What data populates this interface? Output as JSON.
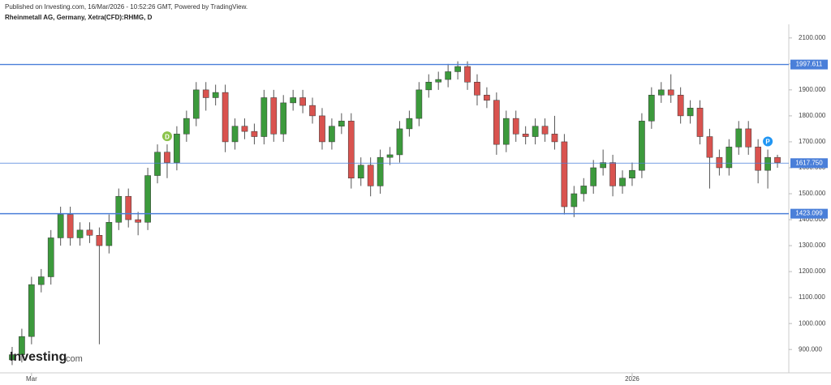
{
  "chart_data": {
    "type": "candlestick",
    "published": "Published on Investing.com, 16/Mar/2026 - 10:52:26 GMT, Powered by TradingView.",
    "title": "Rheinmetall AG, Germany, Xetra(CFD):RHMG, D",
    "logo": "Investing",
    "logo_suffix": ".com",
    "categories": [
      null,
      null,
      "Mar",
      null,
      null,
      null,
      null,
      null,
      null,
      null,
      null,
      null,
      null,
      null,
      null,
      null,
      null,
      null,
      null,
      null,
      null,
      null,
      null,
      null,
      null,
      null,
      null,
      null,
      null,
      null,
      null,
      null,
      null,
      null,
      null,
      null,
      null,
      null,
      null,
      null,
      null,
      null,
      null,
      null,
      null,
      null,
      null,
      null,
      null,
      null,
      null,
      null,
      null,
      null,
      null,
      null,
      null,
      null,
      null,
      null,
      null,
      null,
      null,
      null,
      "2026",
      null,
      null,
      null,
      null,
      null,
      null,
      null,
      null,
      null,
      null,
      null,
      null,
      null,
      null,
      null
    ],
    "open": [
      860,
      880,
      950,
      1150,
      1180,
      1330,
      1420,
      1330,
      1360,
      1340,
      1300,
      1390,
      1490,
      1400,
      1390,
      1570,
      1660,
      1620,
      1730,
      1790,
      1900,
      1870,
      1890,
      1700,
      1760,
      1740,
      1720,
      1870,
      1730,
      1850,
      1870,
      1840,
      1800,
      1700,
      1760,
      1780,
      1560,
      1610,
      1530,
      1640,
      1650,
      1750,
      1790,
      1900,
      1930,
      1940,
      1970,
      1990,
      1930,
      1880,
      1860,
      1690,
      1790,
      1730,
      1720,
      1760,
      1730,
      1700,
      1450,
      1500,
      1530,
      1600,
      1620,
      1530,
      1560,
      1590,
      1780,
      1880,
      1900,
      1880,
      1800,
      1830,
      1720,
      1640,
      1600,
      1680,
      1750,
      1680,
      1590,
      1640
    ],
    "high": [
      910,
      980,
      1180,
      1210,
      1360,
      1450,
      1450,
      1390,
      1390,
      1370,
      1420,
      1520,
      1520,
      1430,
      1600,
      1690,
      1690,
      1760,
      1820,
      1930,
      1930,
      1920,
      1920,
      1790,
      1790,
      1770,
      1900,
      1900,
      1880,
      1900,
      1900,
      1870,
      1830,
      1790,
      1810,
      1810,
      1640,
      1640,
      1670,
      1680,
      1780,
      1820,
      1930,
      1960,
      1970,
      2000,
      2010,
      2010,
      1960,
      1910,
      1890,
      1820,
      1820,
      1760,
      1790,
      1790,
      1800,
      1730,
      1530,
      1560,
      1630,
      1670,
      1650,
      1590,
      1620,
      1810,
      1910,
      1930,
      1960,
      1910,
      1860,
      1860,
      1750,
      1670,
      1710,
      1780,
      1780,
      1710,
      1670,
      1650
    ],
    "low": [
      840,
      850,
      920,
      1120,
      1150,
      1300,
      1300,
      1300,
      1310,
      920,
      1270,
      1360,
      1370,
      1340,
      1360,
      1540,
      1560,
      1590,
      1700,
      1760,
      1820,
      1840,
      1660,
      1670,
      1710,
      1690,
      1690,
      1700,
      1700,
      1820,
      1810,
      1770,
      1670,
      1670,
      1730,
      1520,
      1530,
      1490,
      1500,
      1610,
      1620,
      1720,
      1760,
      1870,
      1900,
      1910,
      1940,
      1900,
      1840,
      1830,
      1650,
      1660,
      1700,
      1690,
      1690,
      1700,
      1670,
      1420,
      1410,
      1470,
      1500,
      1570,
      1490,
      1500,
      1530,
      1560,
      1750,
      1850,
      1850,
      1770,
      1770,
      1690,
      1520,
      1570,
      1570,
      1650,
      1650,
      1540,
      1520,
      1600
    ],
    "close": [
      880,
      950,
      1150,
      1180,
      1330,
      1420,
      1330,
      1360,
      1340,
      1300,
      1390,
      1490,
      1400,
      1390,
      1570,
      1660,
      1620,
      1730,
      1790,
      1900,
      1870,
      1890,
      1700,
      1760,
      1740,
      1720,
      1870,
      1730,
      1850,
      1870,
      1840,
      1800,
      1700,
      1760,
      1780,
      1560,
      1610,
      1530,
      1640,
      1650,
      1750,
      1790,
      1900,
      1930,
      1940,
      1970,
      1990,
      1930,
      1880,
      1860,
      1690,
      1790,
      1730,
      1720,
      1760,
      1730,
      1700,
      1450,
      1500,
      1530,
      1600,
      1620,
      1530,
      1560,
      1590,
      1780,
      1880,
      1900,
      1880,
      1800,
      1830,
      1720,
      1640,
      1600,
      1680,
      1750,
      1680,
      1590,
      1640,
      1620
    ],
    "up_color": "#3c9a3c",
    "down_color": "#d9534f",
    "ylim": [
      860,
      2140
    ],
    "yticks": [
      {
        "value": 900,
        "label": "900.000"
      },
      {
        "value": 1000,
        "label": "1000.000"
      },
      {
        "value": 1100,
        "label": "1100.000"
      },
      {
        "value": 1200,
        "label": "1200.000"
      },
      {
        "value": 1300,
        "label": "1300.000"
      },
      {
        "value": 1400,
        "label": "1400.000"
      },
      {
        "value": 1500,
        "label": "1500.000"
      },
      {
        "value": 1600,
        "label": "1600.000"
      },
      {
        "value": 1700,
        "label": "1700.000"
      },
      {
        "value": 1800,
        "label": "1800.000"
      },
      {
        "value": 1900,
        "label": "1900.000"
      },
      {
        "value": 2000,
        "label": "2000.000"
      },
      {
        "value": 2100,
        "label": "2100.000"
      }
    ],
    "levels": [
      {
        "value": 1997.611,
        "label": "1997.611"
      },
      {
        "value": 1617.75,
        "label": "1617.750"
      },
      {
        "value": 1423.099,
        "label": "1423.099"
      }
    ],
    "level_color": "#4a7fd9",
    "annotations": [
      {
        "index": 16,
        "text": "D",
        "color": "#8bc34a"
      },
      {
        "index": 78,
        "text": "P",
        "color": "#2196f3"
      }
    ]
  }
}
